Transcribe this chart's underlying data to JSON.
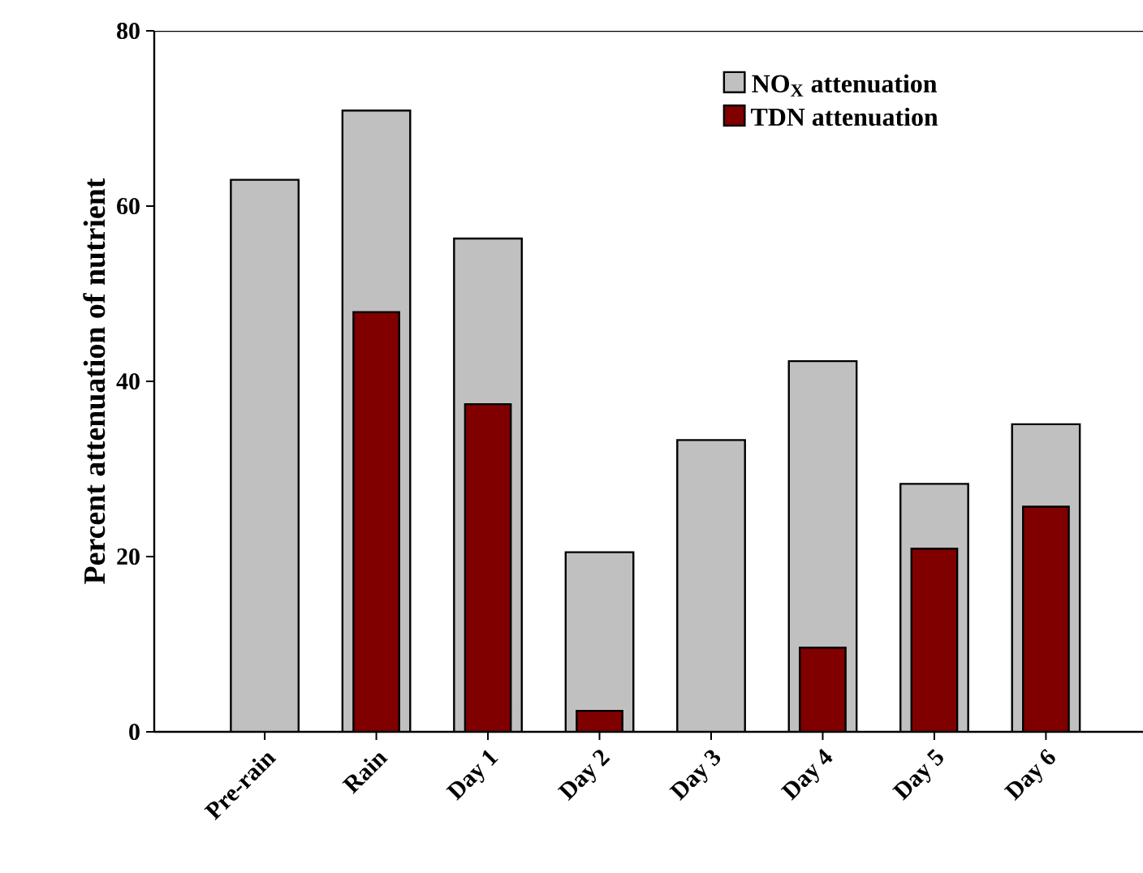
{
  "chart_data": {
    "type": "bar",
    "ylabel": "Percent attenuation of nutrient",
    "categories": [
      "Pre-rain",
      "Rain",
      "Day 1",
      "Day 2",
      "Day 3",
      "Day 4",
      "Day 5",
      "Day 6"
    ],
    "series": [
      {
        "name": "NO$_{X}$ attenuation",
        "color": "#c0c0c0",
        "values": [
          63,
          70.9,
          56.3,
          20.5,
          33.3,
          42.3,
          28.3,
          35.1
        ]
      },
      {
        "name": "TDN attenuation",
        "color": "#800000",
        "values": [
          null,
          47.9,
          37.4,
          2.4,
          null,
          9.6,
          20.9,
          25.7
        ]
      }
    ],
    "ylim": [
      0,
      80
    ],
    "yticks": [
      0,
      20,
      40,
      60,
      80
    ],
    "grid": false,
    "legend": "top right"
  }
}
